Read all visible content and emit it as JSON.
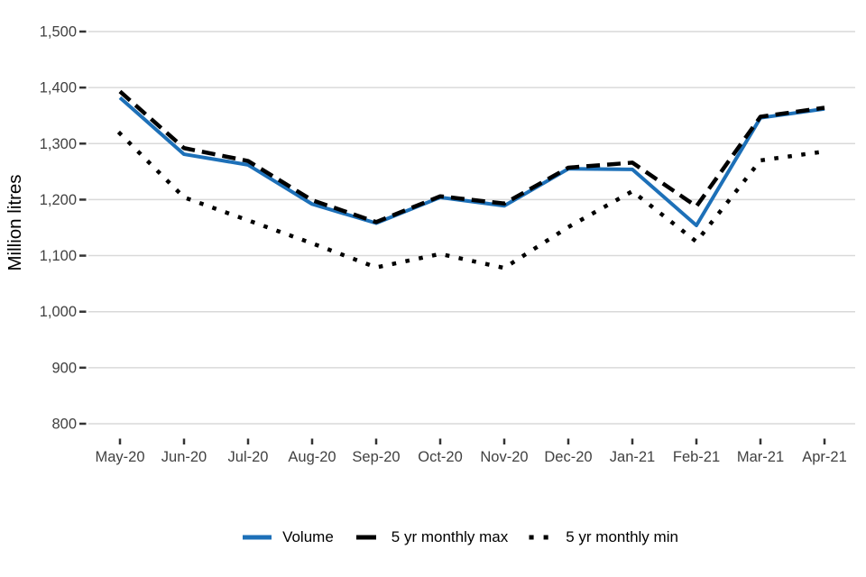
{
  "chart_data": {
    "type": "line",
    "title": "",
    "xlabel": "",
    "ylabel": "Million litres",
    "categories": [
      "May-20",
      "Jun-20",
      "Jul-20",
      "Aug-20",
      "Sep-20",
      "Oct-20",
      "Nov-20",
      "Dec-20",
      "Jan-21",
      "Feb-21",
      "Mar-21",
      "Apr-21"
    ],
    "series": [
      {
        "name": "Volume",
        "color": "#1d70b8",
        "style": "solid",
        "values": [
          1382,
          1281,
          1262,
          1192,
          1158,
          1204,
          1189,
          1255,
          1254,
          1154,
          1346,
          1362
        ]
      },
      {
        "name": "5 yr monthly max",
        "color": "#000000",
        "style": "dashed",
        "values": [
          1393,
          1292,
          1269,
          1199,
          1160,
          1206,
          1193,
          1257,
          1266,
          1188,
          1348,
          1364
        ]
      },
      {
        "name": "5 yr monthly min",
        "color": "#000000",
        "style": "dotted",
        "values": [
          1318,
          1204,
          1163,
          1122,
          1079,
          1103,
          1078,
          1151,
          1215,
          1125,
          1270,
          1286
        ]
      }
    ],
    "ylim": [
      800,
      1500
    ],
    "ytick_step": 100,
    "ytick_labels": [
      "800",
      "900",
      "1,000",
      "1,100",
      "1,200",
      "1,300",
      "1,400",
      "1,500"
    ],
    "grid": "horizontal",
    "legend_position": "bottom",
    "colors": {
      "axis_text": "#414141",
      "tick_mark": "#333333",
      "grid_line": "#d9d9d9",
      "axis_title": "#000000"
    }
  }
}
